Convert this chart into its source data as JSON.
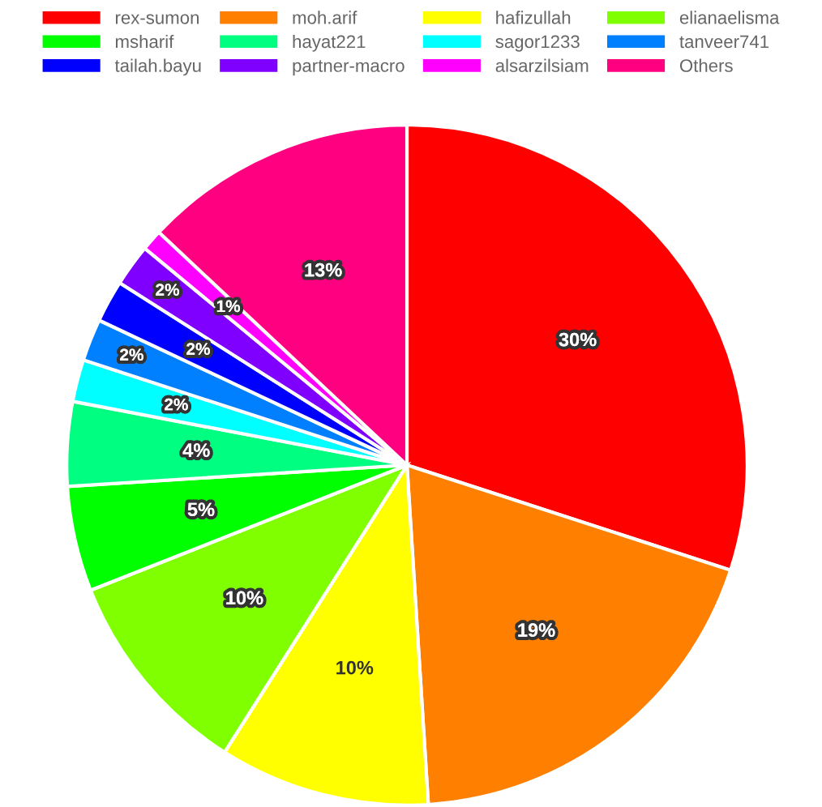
{
  "chart_data": {
    "type": "pie",
    "categories": [
      "rex-sumon",
      "moh.arif",
      "hafizullah",
      "elianaelisma",
      "msharif",
      "hayat221",
      "sagor1233",
      "tanveer741",
      "tailah.bayu",
      "partner-macro",
      "alsarzilsiam",
      "Others"
    ],
    "values": [
      30,
      19,
      10,
      10,
      5,
      4,
      2,
      2,
      2,
      2,
      1,
      13
    ],
    "colors": [
      "#ff0000",
      "#ff8000",
      "#ffff00",
      "#80ff00",
      "#00ff00",
      "#00ff80",
      "#00ffff",
      "#0080ff",
      "#0000ff",
      "#8000ff",
      "#ff00ff",
      "#ff0080"
    ],
    "value_labels": [
      "30%",
      "19%",
      "10%",
      "10%",
      "5%",
      "4%",
      "2%",
      "2%",
      "2%",
      "2%",
      "1%",
      "13%"
    ],
    "legend": "top"
  }
}
